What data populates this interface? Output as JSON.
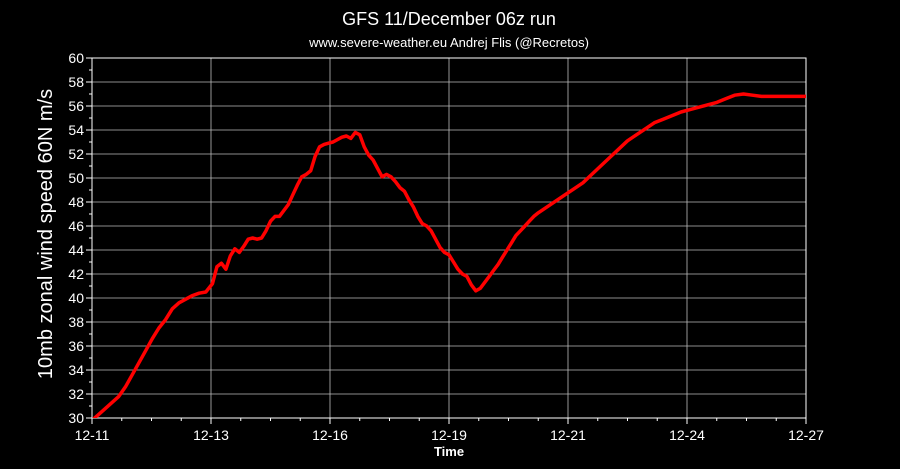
{
  "chart_data": {
    "type": "line",
    "title": "GFS 11/December 06z run",
    "subtitle": "www.severe-weather.eu  Andrej Flis (@Recretos)",
    "xlabel": "Time",
    "ylabel": "10mb zonal wind speed  60N   m/s",
    "x_tick_labels": [
      "12-11",
      "12-13",
      "12-16",
      "12-19",
      "12-21",
      "12-24",
      "12-27"
    ],
    "xlim": [
      0,
      16
    ],
    "ylim": [
      30,
      60
    ],
    "y_ticks": [
      30,
      32,
      34,
      36,
      38,
      40,
      42,
      44,
      46,
      48,
      50,
      52,
      54,
      56,
      58,
      60
    ],
    "grid": true,
    "line_color": "#ff0000",
    "series": [
      {
        "x": [
          0.0,
          0.15,
          0.3,
          0.45,
          0.6,
          0.75,
          0.9,
          1.05,
          1.2,
          1.35,
          1.5,
          1.65,
          1.8,
          1.95,
          2.1,
          2.25,
          2.4,
          2.55,
          2.7,
          2.8,
          2.9,
          3.0,
          3.1,
          3.2,
          3.3,
          3.4,
          3.5,
          3.6,
          3.7,
          3.8,
          3.9,
          4.0,
          4.1,
          4.2,
          4.3,
          4.4,
          4.5,
          4.6,
          4.7,
          4.8,
          4.9,
          5.0,
          5.1,
          5.2,
          5.3,
          5.4,
          5.5,
          5.6,
          5.7,
          5.8,
          5.9,
          6.0,
          6.1,
          6.2,
          6.3,
          6.4,
          6.5,
          6.6,
          6.7,
          6.8,
          6.9,
          7.0,
          7.1,
          7.2,
          7.3,
          7.4,
          7.5,
          7.6,
          7.7,
          7.8,
          7.9,
          8.0,
          8.1,
          8.2,
          8.3,
          8.4,
          8.5,
          8.6,
          8.7,
          8.8,
          8.9,
          9.0,
          9.1,
          9.2,
          9.3,
          9.4,
          9.5,
          9.6,
          9.7,
          9.8,
          9.9,
          10.0,
          10.2,
          10.4,
          10.6,
          10.8,
          11.0,
          11.2,
          11.4,
          11.6,
          11.8,
          12.0,
          12.2,
          12.4,
          12.6,
          12.8,
          13.0,
          13.2,
          13.4,
          13.6,
          13.8,
          14.0,
          14.2,
          14.4,
          14.6,
          14.8,
          15.0,
          15.2,
          15.4,
          15.6,
          15.8,
          16.0
        ],
        "y": [
          29.8,
          30.3,
          30.8,
          31.3,
          31.8,
          32.6,
          33.6,
          34.6,
          35.6,
          36.6,
          37.5,
          38.2,
          39.1,
          39.6,
          39.9,
          40.2,
          40.4,
          40.5,
          41.2,
          42.6,
          42.9,
          42.4,
          43.5,
          44.1,
          43.8,
          44.3,
          44.9,
          45.0,
          44.9,
          45.0,
          45.6,
          46.4,
          46.8,
          46.8,
          47.3,
          47.8,
          48.6,
          49.4,
          50.1,
          50.3,
          50.6,
          51.8,
          52.6,
          52.8,
          52.9,
          53.0,
          53.2,
          53.4,
          53.5,
          53.3,
          53.8,
          53.6,
          52.6,
          51.9,
          51.5,
          50.8,
          50.1,
          50.3,
          50.1,
          49.7,
          49.2,
          48.9,
          48.2,
          47.6,
          46.8,
          46.2,
          46.0,
          45.6,
          44.9,
          44.2,
          43.8,
          43.6,
          43.0,
          42.4,
          42.0,
          41.8,
          41.1,
          40.6,
          40.8,
          41.3,
          41.8,
          42.3,
          42.8,
          43.4,
          44.0,
          44.6,
          45.2,
          45.6,
          46.0,
          46.4,
          46.8,
          47.1,
          47.6,
          48.1,
          48.6,
          49.1,
          49.6,
          50.3,
          51.0,
          51.7,
          52.4,
          53.1,
          53.6,
          54.1,
          54.6,
          54.9,
          55.2,
          55.5,
          55.7,
          55.9,
          56.1,
          56.3,
          56.6,
          56.9,
          57.0,
          56.9,
          56.8,
          56.8,
          56.8,
          56.8,
          56.8,
          56.8
        ]
      }
    ]
  }
}
